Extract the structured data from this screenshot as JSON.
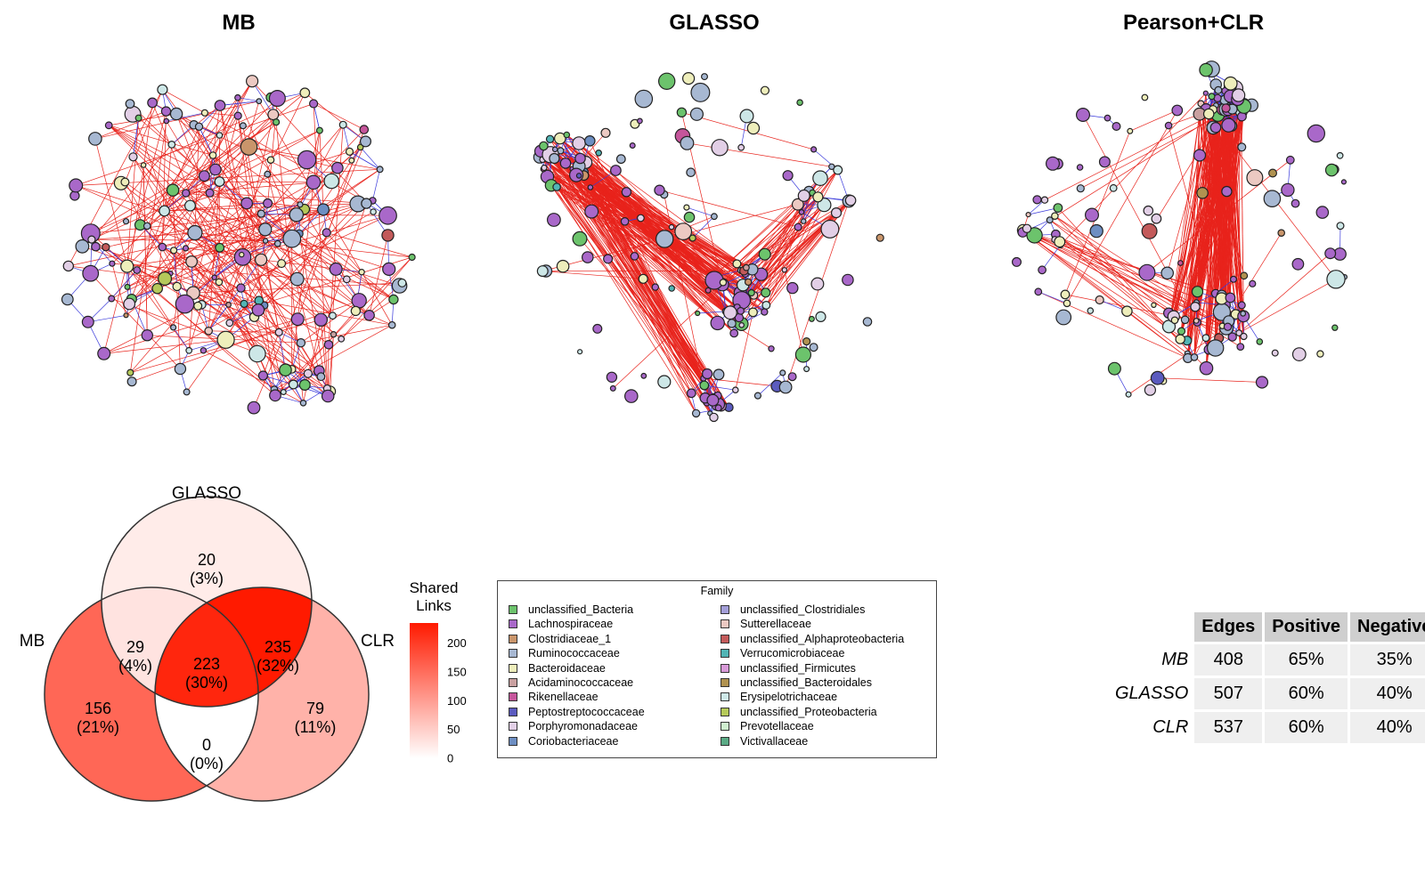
{
  "networks": {
    "titles": [
      "MB",
      "GLASSO",
      "Pearson+CLR"
    ],
    "edge_colors": {
      "positive": "#e8231c",
      "negative": "#3a3adb"
    },
    "node_stroke": "#222222"
  },
  "venn": {
    "sets": {
      "top": "GLASSO",
      "left": "MB",
      "right": "CLR"
    },
    "regions": {
      "glasso_only": {
        "count": "20",
        "pct": "(3%)",
        "value": 20
      },
      "mb_glasso": {
        "count": "29",
        "pct": "(4%)",
        "value": 29
      },
      "glasso_clr": {
        "count": "235",
        "pct": "(32%)",
        "value": 235
      },
      "all_three": {
        "count": "223",
        "pct": "(30%)",
        "value": 223
      },
      "mb_only": {
        "count": "156",
        "pct": "(21%)",
        "value": 156
      },
      "clr_only": {
        "count": "79",
        "pct": "(11%)",
        "value": 79
      },
      "mb_clr": {
        "count": "0",
        "pct": "(0%)",
        "value": 0
      }
    },
    "colorbar": {
      "title_line1": "Shared",
      "title_line2": "Links",
      "ticks": [
        "0",
        "50",
        "100",
        "150",
        "200"
      ],
      "min": 0,
      "max": 235,
      "low_color": "#ffffff",
      "high_color": "#ff1a00"
    }
  },
  "legend": {
    "title": "Family",
    "items": [
      {
        "label": "unclassified_Bacteria",
        "color": "#6cc36c"
      },
      {
        "label": "Lachnospiraceae",
        "color": "#a968c9"
      },
      {
        "label": "Clostridiaceae_1",
        "color": "#c9956b"
      },
      {
        "label": "Ruminococcaceae",
        "color": "#a7b8d2"
      },
      {
        "label": "Bacteroidaceae",
        "color": "#eeeebb"
      },
      {
        "label": "Acidaminococcaceae",
        "color": "#c9a0a0"
      },
      {
        "label": "Rikenellaceae",
        "color": "#c5559b"
      },
      {
        "label": "Peptostreptococcaceae",
        "color": "#5b5bbf"
      },
      {
        "label": "Porphyromonadaceae",
        "color": "#e2cfe6"
      },
      {
        "label": "Coriobacteriaceae",
        "color": "#6d8ec2"
      },
      {
        "label": "unclassified_Clostridiales",
        "color": "#a39ed8"
      },
      {
        "label": "Sutterellaceae",
        "color": "#ecc9c2"
      },
      {
        "label": "unclassified_Alphaproteobacteria",
        "color": "#c35a5a"
      },
      {
        "label": "Verrucomicrobiaceae",
        "color": "#52b5b5"
      },
      {
        "label": "unclassified_Firmicutes",
        "color": "#d89ad8"
      },
      {
        "label": "unclassified_Bacteroidales",
        "color": "#b09250"
      },
      {
        "label": "Erysipelotrichaceae",
        "color": "#cde7e7"
      },
      {
        "label": "unclassified_Proteobacteria",
        "color": "#b5c95a"
      },
      {
        "label": "Prevotellaceae",
        "color": "#cfeecf"
      },
      {
        "label": "Victivallaceae",
        "color": "#5aaa85"
      }
    ]
  },
  "stats_table": {
    "headers": [
      "Edges",
      "Positive",
      "Negative"
    ],
    "rows": [
      {
        "name": "MB",
        "edges": "408",
        "positive": "65%",
        "negative": "35%"
      },
      {
        "name": "GLASSO",
        "edges": "507",
        "positive": "60%",
        "negative": "40%"
      },
      {
        "name": "CLR",
        "edges": "537",
        "positive": "60%",
        "negative": "40%"
      }
    ]
  }
}
